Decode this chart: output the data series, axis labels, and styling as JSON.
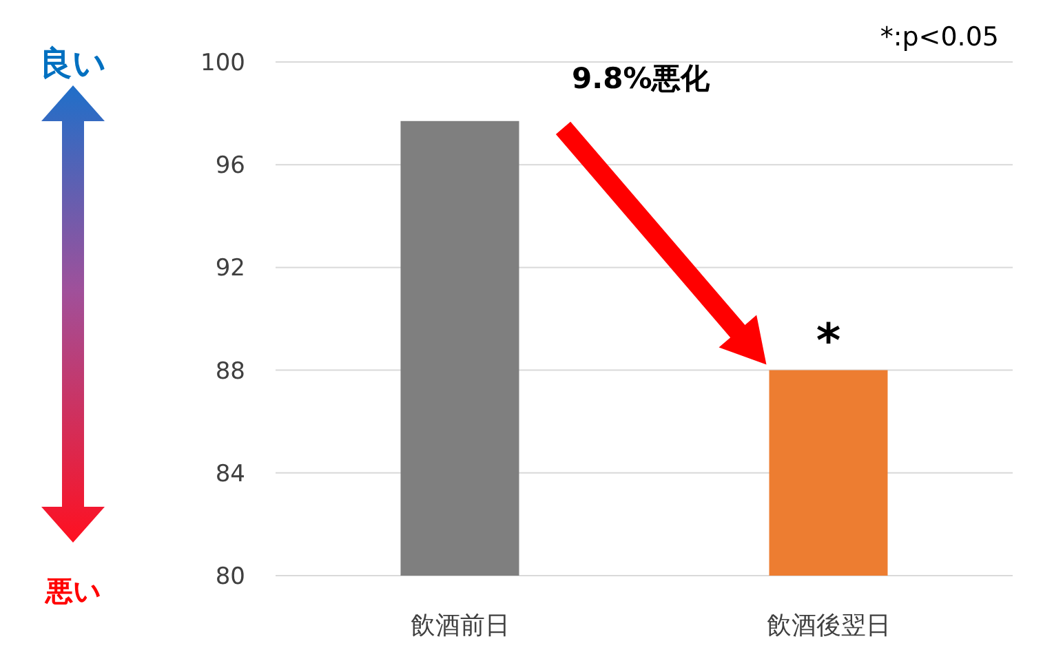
{
  "chart_data": {
    "type": "bar",
    "categories": [
      "飲酒前日",
      "飲酒後翌日"
    ],
    "values": [
      97.7,
      88.0
    ],
    "colors": [
      "#7f7f7f",
      "#ed7d31"
    ],
    "ylim": [
      80,
      100
    ],
    "yticks": [
      80,
      84,
      88,
      92,
      96,
      100
    ],
    "grid": "y",
    "annotations": [
      "*:p<0.05",
      "9.8%悪化",
      {
        "text": "*",
        "x": "飲酒後翌日",
        "y": 88
      },
      "良い",
      "悪い"
    ]
  }
}
